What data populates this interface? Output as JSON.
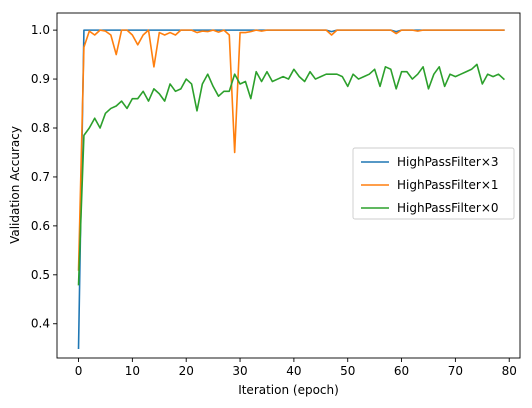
{
  "chart_data": {
    "type": "line",
    "xlabel": "Iteration (epoch)",
    "ylabel": "Validation Accuracy",
    "xlim": [
      -4,
      82
    ],
    "ylim": [
      0.33,
      1.035
    ],
    "xticks": [
      0,
      10,
      20,
      30,
      40,
      50,
      60,
      70,
      80
    ],
    "yticks": [
      0.4,
      0.5,
      0.6,
      0.7,
      0.8,
      0.9,
      1.0
    ],
    "ytick_labels": [
      "0.4",
      "0.5",
      "0.6",
      "0.7",
      "0.8",
      "0.9",
      "1.0"
    ],
    "grid": false,
    "legend_position": "center-right",
    "series": [
      {
        "name": "HighPassFilter×3",
        "color": "#1f77b4",
        "values": [
          0.35,
          1.0,
          1.0,
          1.0,
          1.0,
          1.0,
          1.0,
          1.0,
          1.0,
          1.0,
          1.0,
          1.0,
          1.0,
          1.0,
          1.0,
          1.0,
          1.0,
          1.0,
          1.0,
          1.0,
          1.0,
          1.0,
          1.0,
          1.0,
          1.0,
          1.0,
          1.0,
          1.0,
          1.0,
          1.0,
          1.0,
          1.0,
          1.0,
          1.0,
          1.0,
          1.0,
          1.0,
          1.0,
          1.0,
          1.0,
          1.0,
          1.0,
          1.0,
          1.0,
          1.0,
          1.0,
          1.0,
          0.997,
          1.0,
          1.0,
          1.0,
          1.0,
          1.0,
          1.0,
          1.0,
          1.0,
          1.0,
          1.0,
          1.0,
          0.997,
          1.0,
          1.0,
          1.0,
          1.0,
          1.0,
          1.0,
          1.0,
          1.0,
          1.0,
          1.0,
          1.0,
          1.0,
          1.0,
          1.0,
          1.0,
          1.0,
          1.0,
          1.0,
          1.0,
          1.0
        ]
      },
      {
        "name": "HighPassFilter×1",
        "color": "#ff7f0e",
        "values": [
          0.51,
          0.965,
          0.998,
          0.99,
          1.0,
          0.998,
          0.99,
          0.95,
          1.0,
          1.0,
          0.99,
          0.97,
          0.99,
          1.0,
          0.925,
          0.995,
          0.99,
          0.995,
          0.99,
          1.0,
          1.0,
          1.0,
          0.995,
          0.998,
          0.997,
          1.0,
          0.996,
          1.0,
          0.99,
          0.75,
          0.995,
          0.995,
          0.997,
          1.0,
          0.998,
          1.0,
          1.0,
          1.0,
          1.0,
          1.0,
          1.0,
          1.0,
          1.0,
          1.0,
          1.0,
          1.0,
          1.0,
          0.99,
          1.0,
          1.0,
          1.0,
          1.0,
          1.0,
          1.0,
          1.0,
          1.0,
          1.0,
          1.0,
          1.0,
          0.993,
          1.0,
          1.0,
          1.0,
          0.998,
          1.0,
          1.0,
          1.0,
          1.0,
          1.0,
          1.0,
          1.0,
          1.0,
          1.0,
          1.0,
          1.0,
          1.0,
          1.0,
          1.0,
          1.0,
          1.0
        ]
      },
      {
        "name": "HighPassFilter×0",
        "color": "#2ca02c",
        "values": [
          0.48,
          0.785,
          0.8,
          0.82,
          0.8,
          0.83,
          0.84,
          0.845,
          0.855,
          0.84,
          0.86,
          0.86,
          0.875,
          0.855,
          0.88,
          0.87,
          0.855,
          0.89,
          0.875,
          0.88,
          0.9,
          0.89,
          0.835,
          0.89,
          0.91,
          0.885,
          0.865,
          0.875,
          0.875,
          0.91,
          0.89,
          0.895,
          0.86,
          0.915,
          0.895,
          0.915,
          0.895,
          0.9,
          0.905,
          0.9,
          0.92,
          0.905,
          0.895,
          0.915,
          0.9,
          0.905,
          0.91,
          0.91,
          0.91,
          0.905,
          0.885,
          0.91,
          0.9,
          0.905,
          0.91,
          0.92,
          0.885,
          0.925,
          0.92,
          0.88,
          0.915,
          0.915,
          0.9,
          0.91,
          0.925,
          0.88,
          0.91,
          0.925,
          0.885,
          0.91,
          0.905,
          0.91,
          0.915,
          0.92,
          0.93,
          0.89,
          0.91,
          0.905,
          0.91,
          0.9
        ]
      }
    ]
  }
}
